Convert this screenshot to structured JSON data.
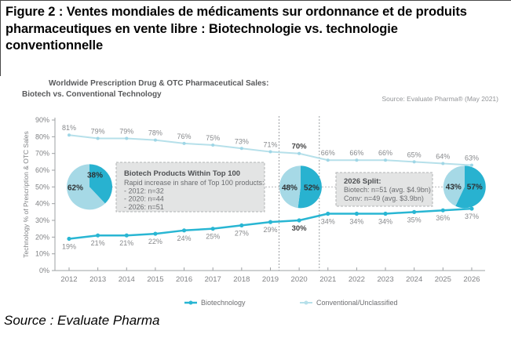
{
  "page": {
    "figure_title_lines": [
      "Figure 2 : Ventes mondiales de médicaments sur ordonnance et de produits",
      "pharmaceutiques en vente libre : Biotechnologie vs. technologie",
      "conventionnelle"
    ],
    "bottom_source": "Source : Evaluate Pharma"
  },
  "chart_data": {
    "type": "line",
    "title_line1": "Worldwide Prescription Drug & OTC Pharmaceutical Sales:",
    "title_line2": "Biotech vs. Conventional Technology",
    "source_note": "Source: Evaluate Pharma® (May 2021)",
    "x": [
      2012,
      2013,
      2014,
      2015,
      2016,
      2017,
      2018,
      2019,
      2020,
      2021,
      2022,
      2023,
      2024,
      2025,
      2026
    ],
    "series": [
      {
        "name": "Biotechnology",
        "color": "#29b6d3",
        "marker": "#29b6d3",
        "values": [
          19,
          21,
          21,
          22,
          24,
          25,
          27,
          29,
          30,
          34,
          34,
          34,
          35,
          36,
          37
        ]
      },
      {
        "name": "Conventional/Unclassified",
        "color": "#b6e0ea",
        "marker": "#9fd6e6",
        "values": [
          81,
          79,
          79,
          78,
          76,
          75,
          73,
          71,
          70,
          66,
          66,
          66,
          65,
          64,
          63
        ]
      }
    ],
    "ylabel": "Technology % of Prescription & OTC Sales",
    "ylim": [
      0,
      90
    ],
    "ytick_step": 10,
    "grid": false,
    "legend_position": "bottom",
    "bold_x": 2020,
    "forecast_divider_x": [
      2019.3,
      2020.7
    ],
    "pies": [
      {
        "light_label": "62%",
        "dark_label": "38%",
        "light_pct": 62,
        "dark_pct": 38,
        "center_x_year": 2012.71,
        "center_y_pct": 50,
        "radius": 29
      },
      {
        "light_label": "48%",
        "dark_label": "52%",
        "light_pct": 48,
        "dark_pct": 52,
        "center_x_year": 2020.05,
        "center_y_pct": 50,
        "radius": 27
      },
      {
        "light_label": "43%",
        "dark_label": "57%",
        "light_pct": 43,
        "dark_pct": 57,
        "center_x_year": 2025.75,
        "center_y_pct": 50,
        "radius": 27
      }
    ],
    "annotations": [
      {
        "title": "Biotech Products Within Top 100",
        "lines": [
          "Rapid increase in share of Top 100 products:",
          "- 2012: n=32",
          "- 2020: n=44",
          "- 2026: n=51"
        ]
      },
      {
        "title": "2026 Split:",
        "lines": [
          "Biotech: n=51 (avg. $4.9bn)",
          "Conv: n=49 (avg. $3.9bn)"
        ]
      }
    ],
    "colors": {
      "biotech": "#29b6d3",
      "conventional": "#b6e0ea",
      "pie_dark": "#28b2d0",
      "pie_light": "#a6d9e6",
      "axis": "#9da0a3",
      "divider": "#9da0a3",
      "connector": "#b7b9bb",
      "box_fill": "#e3e4e4",
      "box_border": "#b1b3b5"
    }
  }
}
